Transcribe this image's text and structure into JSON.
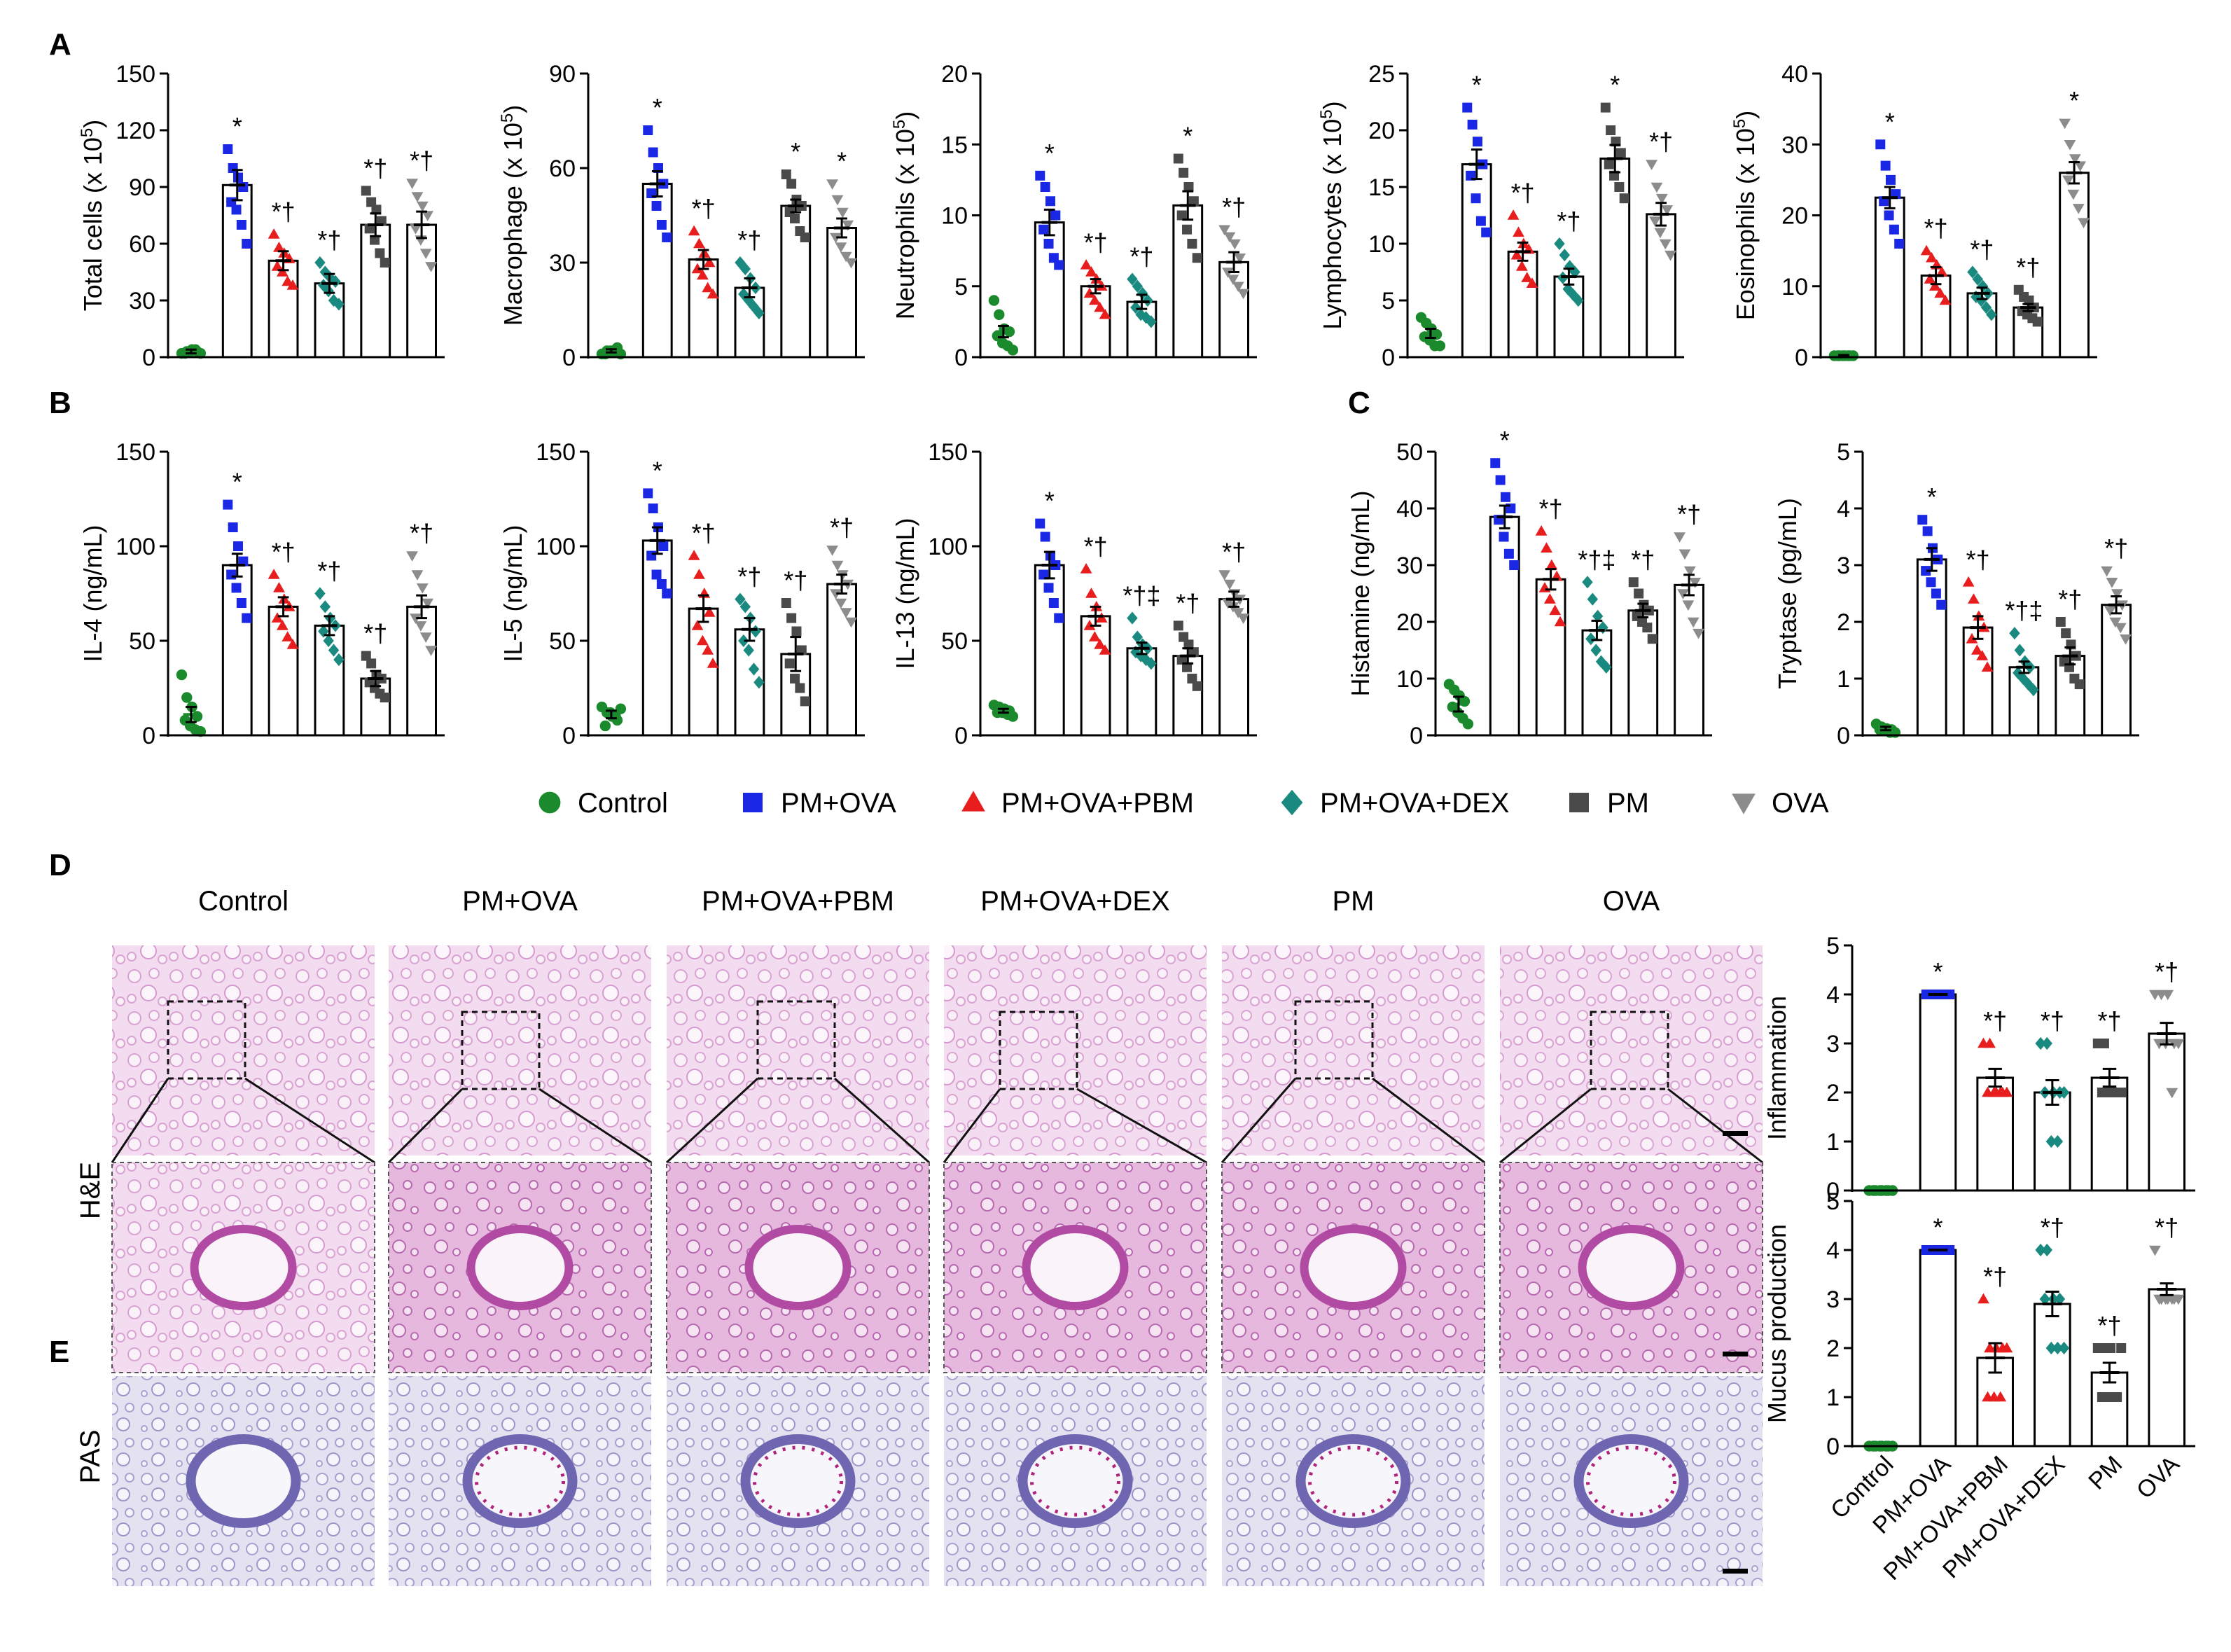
{
  "groups": [
    "Control",
    "PM+OVA",
    "PM+OVA+PBM",
    "PM+OVA+DEX",
    "PM",
    "OVA"
  ],
  "group_colors": [
    "#1a8a2c",
    "#1a28e6",
    "#e81e1e",
    "#1a8a80",
    "#4a4a4a",
    "#8c8c8c"
  ],
  "group_markers": [
    "circle",
    "square",
    "triangle-up",
    "diamond",
    "square",
    "triangle-down"
  ],
  "panel_letters": {
    "A": "A",
    "B": "B",
    "C": "C",
    "D": "D",
    "E": "E"
  },
  "legend": [
    "Control",
    "PM+OVA",
    "PM+OVA+PBM",
    "PM+OVA+DEX",
    "PM",
    "OVA"
  ],
  "image_section": {
    "column_titles": [
      "Control",
      "PM+OVA",
      "PM+OVA+PBM",
      "PM+OVA+DEX",
      "PM",
      "OVA"
    ],
    "he_label": "H&E",
    "pas_label": "PAS"
  },
  "chart_data": [
    {
      "id": "total",
      "type": "bar",
      "ylabel": "Total cells (x 10",
      "ylabel_sup": "5",
      "ylabel_end": ")",
      "ylim": [
        0,
        150
      ],
      "yticks": [
        0,
        30,
        60,
        90,
        120,
        150
      ],
      "categories": [
        "Control",
        "PM+OVA",
        "PM+OVA+PBM",
        "PM+OVA+DEX",
        "PM",
        "OVA"
      ],
      "values": [
        3,
        91,
        51,
        39,
        70,
        70
      ],
      "errors": [
        1,
        8,
        5,
        5,
        6,
        7
      ],
      "annotations": [
        "",
        "*",
        "*†",
        "*†",
        "*†",
        "*†"
      ],
      "points": [
        [
          2,
          3,
          4,
          3,
          2,
          3,
          4,
          2
        ],
        [
          110,
          100,
          95,
          90,
          82,
          78,
          70,
          60
        ],
        [
          65,
          58,
          55,
          52,
          48,
          45,
          40,
          38
        ],
        [
          50,
          45,
          42,
          40,
          38,
          35,
          30,
          28
        ],
        [
          88,
          82,
          78,
          72,
          68,
          62,
          55,
          50
        ],
        [
          92,
          85,
          80,
          75,
          68,
          62,
          55,
          48
        ]
      ]
    },
    {
      "id": "macrophage",
      "type": "bar",
      "ylabel": "Macrophage (x 10",
      "ylabel_sup": "5",
      "ylabel_end": ")",
      "ylim": [
        0,
        90
      ],
      "yticks": [
        0,
        30,
        60,
        90
      ],
      "categories": [
        "Control",
        "PM+OVA",
        "PM+OVA+PBM",
        "PM+OVA+DEX",
        "PM",
        "OVA"
      ],
      "values": [
        2,
        55,
        31,
        22,
        48,
        41
      ],
      "errors": [
        0.5,
        4,
        3,
        3,
        2,
        3
      ],
      "annotations": [
        "",
        "*",
        "*†",
        "*†",
        "*",
        "*"
      ],
      "points": [
        [
          1,
          2,
          2,
          3,
          1,
          2,
          2,
          1
        ],
        [
          72,
          65,
          60,
          55,
          52,
          48,
          42,
          38
        ],
        [
          40,
          36,
          33,
          30,
          28,
          26,
          22,
          20
        ],
        [
          30,
          28,
          25,
          22,
          20,
          18,
          16,
          14
        ],
        [
          58,
          55,
          50,
          48,
          46,
          44,
          40,
          38
        ],
        [
          55,
          50,
          46,
          42,
          38,
          35,
          32,
          30
        ]
      ]
    },
    {
      "id": "neutrophils",
      "type": "bar",
      "ylabel": "Neutrophils (x 10",
      "ylabel_sup": "5",
      "ylabel_end": ")",
      "ylim": [
        0,
        20
      ],
      "yticks": [
        0,
        5,
        10,
        15,
        20
      ],
      "categories": [
        "Control",
        "PM+OVA",
        "PM+OVA+PBM",
        "PM+OVA+DEX",
        "PM",
        "OVA"
      ],
      "values": [
        1.8,
        9.5,
        5.0,
        3.9,
        10.7,
        6.7
      ],
      "errors": [
        0.4,
        0.9,
        0.5,
        0.5,
        1.0,
        0.7
      ],
      "annotations": [
        "",
        "*",
        "*†",
        "*†",
        "*",
        "*†"
      ],
      "points": [
        [
          4,
          3,
          2,
          1.8,
          1.5,
          1,
          0.8,
          0.5
        ],
        [
          12.8,
          12,
          11,
          10,
          9,
          8,
          7,
          6.5
        ],
        [
          6.5,
          6,
          5.5,
          5,
          4.5,
          4,
          3.5,
          3
        ],
        [
          5.5,
          5,
          4.5,
          4,
          3.5,
          3,
          2.8,
          2.5
        ],
        [
          14,
          13,
          12,
          11,
          10,
          9,
          8,
          7
        ],
        [
          9,
          8.5,
          8,
          7,
          6,
          5.5,
          5,
          4.5
        ]
      ]
    },
    {
      "id": "lymphocytes",
      "type": "bar",
      "ylabel": "Lymphocytes (x 10",
      "ylabel_sup": "5",
      "ylabel_end": ")",
      "ylim": [
        0,
        25
      ],
      "yticks": [
        0,
        5,
        10,
        15,
        20,
        25
      ],
      "categories": [
        "Control",
        "PM+OVA",
        "PM+OVA+PBM",
        "PM+OVA+DEX",
        "PM",
        "OVA"
      ],
      "values": [
        2.1,
        17,
        9.3,
        7.1,
        17.5,
        12.6
      ],
      "errors": [
        0.4,
        1.3,
        0.8,
        0.7,
        1.2,
        1.0
      ],
      "annotations": [
        "",
        "*",
        "*†",
        "*†",
        "*",
        "*†"
      ],
      "points": [
        [
          3.5,
          3,
          2.5,
          2,
          1.8,
          1.5,
          1,
          1
        ],
        [
          22,
          20.5,
          19,
          17,
          16,
          14,
          12,
          11
        ],
        [
          12.5,
          11,
          10,
          9.5,
          9,
          8,
          7,
          6.5
        ],
        [
          10,
          9,
          8,
          7.5,
          7,
          6,
          5.5,
          5
        ],
        [
          22,
          20,
          19,
          18,
          17,
          16,
          15,
          14
        ],
        [
          17,
          15,
          14,
          13,
          12,
          11,
          10,
          9
        ]
      ]
    },
    {
      "id": "eosinophils",
      "type": "bar",
      "ylabel": "Eosinophils (x 10",
      "ylabel_sup": "5",
      "ylabel_end": ")",
      "ylim": [
        0,
        40
      ],
      "yticks": [
        0,
        10,
        20,
        30,
        40
      ],
      "categories": [
        "Control",
        "PM+OVA",
        "PM+OVA+PBM",
        "PM+OVA+DEX",
        "PM",
        "OVA"
      ],
      "values": [
        0.2,
        22.5,
        11.5,
        9,
        7,
        26
      ],
      "errors": [
        0.1,
        1.5,
        1.2,
        0.8,
        0.5,
        1.5
      ],
      "annotations": [
        "",
        "*",
        "*†",
        "*†",
        "*†",
        "*"
      ],
      "points": [
        [
          0.2,
          0.2,
          0.2,
          0.2,
          0.2,
          0.2,
          0.2,
          0.2
        ],
        [
          30,
          27,
          25,
          23,
          22,
          20,
          18,
          16
        ],
        [
          15,
          14,
          13,
          12,
          11,
          10,
          9,
          8
        ],
        [
          12,
          11,
          10,
          9,
          8.5,
          8,
          7,
          6
        ],
        [
          9.5,
          8.5,
          8,
          7,
          6.5,
          6,
          5.5,
          5
        ],
        [
          33,
          30,
          28,
          27,
          25,
          23,
          21,
          19
        ]
      ]
    },
    {
      "id": "il4",
      "type": "bar",
      "ylabel": "IL-4 (ng/mL)",
      "ylim": [
        0,
        150
      ],
      "yticks": [
        0,
        50,
        100,
        150
      ],
      "categories": [
        "Control",
        "PM+OVA",
        "PM+OVA+PBM",
        "PM+OVA+DEX",
        "PM",
        "OVA"
      ],
      "values": [
        11,
        90,
        68,
        58,
        30,
        68
      ],
      "errors": [
        4,
        6,
        5,
        5,
        4,
        6
      ],
      "annotations": [
        "",
        "*",
        "*†",
        "*†",
        "*†",
        "*†"
      ],
      "points": [
        [
          32,
          20,
          15,
          10,
          8,
          5,
          3,
          2
        ],
        [
          122,
          110,
          100,
          92,
          85,
          78,
          70,
          62
        ],
        [
          85,
          78,
          72,
          68,
          62,
          58,
          52,
          48
        ],
        [
          75,
          68,
          62,
          58,
          55,
          50,
          45,
          40
        ],
        [
          42,
          38,
          32,
          30,
          28,
          25,
          22,
          20
        ],
        [
          95,
          85,
          78,
          70,
          62,
          58,
          52,
          45
        ]
      ]
    },
    {
      "id": "il5",
      "type": "bar",
      "ylabel": "IL-5 (ng/mL)",
      "ylim": [
        0,
        150
      ],
      "yticks": [
        0,
        50,
        100,
        150
      ],
      "categories": [
        "Control",
        "PM+OVA",
        "PM+OVA+PBM",
        "PM+OVA+DEX",
        "PM",
        "OVA"
      ],
      "values": [
        11,
        103,
        67,
        56,
        43,
        80
      ],
      "errors": [
        2,
        7,
        7,
        6,
        9,
        5
      ],
      "annotations": [
        "",
        "*",
        "*†",
        "*†",
        "*†",
        "*†"
      ],
      "points": [
        [
          15,
          12,
          10,
          8,
          5,
          12,
          10,
          14
        ],
        [
          128,
          120,
          110,
          100,
          95,
          85,
          80,
          75
        ],
        [
          95,
          85,
          75,
          65,
          58,
          50,
          45,
          38
        ],
        [
          72,
          68,
          62,
          55,
          50,
          45,
          35,
          28
        ],
        [
          70,
          62,
          55,
          45,
          38,
          30,
          25,
          18
        ],
        [
          98,
          90,
          85,
          80,
          75,
          70,
          65,
          60
        ]
      ]
    },
    {
      "id": "il13",
      "type": "bar",
      "ylabel": "IL-13 (ng/mL)",
      "ylim": [
        0,
        150
      ],
      "yticks": [
        0,
        50,
        100,
        150
      ],
      "categories": [
        "Control",
        "PM+OVA",
        "PM+OVA+PBM",
        "PM+OVA+DEX",
        "PM",
        "OVA"
      ],
      "values": [
        13,
        90,
        63,
        46,
        42,
        72
      ],
      "errors": [
        1,
        7,
        5,
        3,
        4,
        4
      ],
      "annotations": [
        "",
        "*",
        "*†",
        "*†‡",
        "*†",
        "*†"
      ],
      "points": [
        [
          16,
          15,
          14,
          13,
          12,
          12,
          11,
          10
        ],
        [
          112,
          105,
          95,
          90,
          85,
          78,
          70,
          62
        ],
        [
          88,
          75,
          68,
          62,
          58,
          52,
          48,
          45
        ],
        [
          62,
          52,
          48,
          46,
          44,
          42,
          40,
          38
        ],
        [
          58,
          52,
          48,
          44,
          40,
          36,
          30,
          26
        ],
        [
          85,
          80,
          75,
          72,
          70,
          68,
          65,
          62
        ]
      ]
    },
    {
      "id": "histamine",
      "type": "bar",
      "ylabel": "Histamine (ng/mL)",
      "ylim": [
        0,
        50
      ],
      "yticks": [
        0,
        10,
        20,
        30,
        40,
        50
      ],
      "categories": [
        "Control",
        "PM+OVA",
        "PM+OVA+PBM",
        "PM+OVA+DEX",
        "PM",
        "OVA"
      ],
      "values": [
        5.5,
        38.5,
        27.5,
        18.5,
        22,
        26.5
      ],
      "errors": [
        1.3,
        2.0,
        1.8,
        1.7,
        1.2,
        1.8
      ],
      "annotations": [
        "",
        "*",
        "*†",
        "*†‡",
        "*†",
        "*†"
      ],
      "points": [
        [
          9,
          8,
          7,
          6,
          5,
          4,
          3,
          2
        ],
        [
          48,
          45,
          42,
          40,
          38,
          35,
          32,
          30
        ],
        [
          36,
          33,
          30,
          28,
          26,
          24,
          22,
          20
        ],
        [
          27,
          24,
          21,
          19,
          17,
          15,
          13,
          12
        ],
        [
          27,
          25,
          23,
          22,
          21,
          20,
          19,
          17
        ],
        [
          35,
          32,
          29,
          27,
          25,
          23,
          20,
          18
        ]
      ]
    },
    {
      "id": "tryptase",
      "type": "bar",
      "ylabel": "Tryptase (pg/mL)",
      "ylim": [
        0,
        5
      ],
      "yticks": [
        0,
        1,
        2,
        3,
        4,
        5
      ],
      "categories": [
        "Control",
        "PM+OVA",
        "PM+OVA+PBM",
        "PM+OVA+DEX",
        "PM",
        "OVA"
      ],
      "values": [
        0.12,
        3.1,
        1.9,
        1.2,
        1.4,
        2.3
      ],
      "errors": [
        0.03,
        0.2,
        0.2,
        0.1,
        0.15,
        0.15
      ],
      "annotations": [
        "",
        "*",
        "*†",
        "*†‡",
        "*†",
        "*†"
      ],
      "points": [
        [
          0.2,
          0.15,
          0.12,
          0.1,
          0.1,
          0.08,
          0.05,
          0.05
        ],
        [
          3.8,
          3.6,
          3.3,
          3.1,
          2.9,
          2.7,
          2.5,
          2.3
        ],
        [
          2.7,
          2.4,
          2.1,
          1.9,
          1.7,
          1.5,
          1.4,
          1.2
        ],
        [
          1.8,
          1.5,
          1.3,
          1.2,
          1.1,
          1.0,
          0.9,
          0.8
        ],
        [
          2.0,
          1.8,
          1.6,
          1.4,
          1.3,
          1.2,
          1.0,
          0.9
        ],
        [
          2.9,
          2.7,
          2.5,
          2.3,
          2.2,
          2.0,
          1.9,
          1.7
        ]
      ]
    },
    {
      "id": "inflammation",
      "type": "bar",
      "ylabel": "Inflammation",
      "ylim": [
        0,
        5
      ],
      "yticks": [
        0,
        1,
        2,
        3,
        4,
        5
      ],
      "categories": [
        "Control",
        "PM+OVA",
        "PM+OVA+PBM",
        "PM+OVA+DEX",
        "PM",
        "OVA"
      ],
      "values": [
        0,
        4,
        2.3,
        2.0,
        2.3,
        3.2
      ],
      "errors": [
        0,
        0,
        0.18,
        0.25,
        0.18,
        0.22
      ],
      "annotations": [
        "",
        "*",
        "*†",
        "*†",
        "*†",
        "*†"
      ],
      "points": [
        [
          0,
          0,
          0,
          0,
          0,
          0,
          0,
          0
        ],
        [
          4,
          4,
          4,
          4,
          4,
          4,
          4,
          4
        ],
        [
          3,
          3,
          2,
          2,
          2,
          2,
          2,
          2
        ],
        [
          3,
          3,
          2,
          2,
          2,
          1,
          1,
          2
        ],
        [
          3,
          3,
          2,
          2,
          2,
          2,
          2,
          2
        ],
        [
          4,
          4,
          4,
          3,
          3,
          3,
          2,
          3
        ]
      ]
    },
    {
      "id": "mucus",
      "type": "bar",
      "ylabel": "Mucus production",
      "ylim": [
        0,
        5
      ],
      "yticks": [
        0,
        1,
        2,
        3,
        4,
        5
      ],
      "categories": [
        "Control",
        "PM+OVA",
        "PM+OVA+PBM",
        "PM+OVA+DEX",
        "PM",
        "OVA"
      ],
      "values": [
        0,
        4,
        1.8,
        2.9,
        1.5,
        3.2
      ],
      "errors": [
        0,
        0,
        0.3,
        0.25,
        0.2,
        0.12
      ],
      "annotations": [
        "",
        "*",
        "*†",
        "*†",
        "*†",
        "*†"
      ],
      "points": [
        [
          0,
          0,
          0,
          0,
          0,
          0,
          0,
          0
        ],
        [
          4,
          4,
          4,
          4,
          4,
          4,
          4,
          4
        ],
        [
          3,
          2,
          2,
          2,
          1,
          1,
          1,
          2
        ],
        [
          4,
          4,
          3,
          3,
          3,
          2,
          2,
          2
        ],
        [
          2,
          2,
          2,
          1,
          1,
          1,
          1,
          2
        ],
        [
          4,
          3,
          3,
          3,
          3,
          3,
          3,
          3
        ]
      ]
    }
  ]
}
